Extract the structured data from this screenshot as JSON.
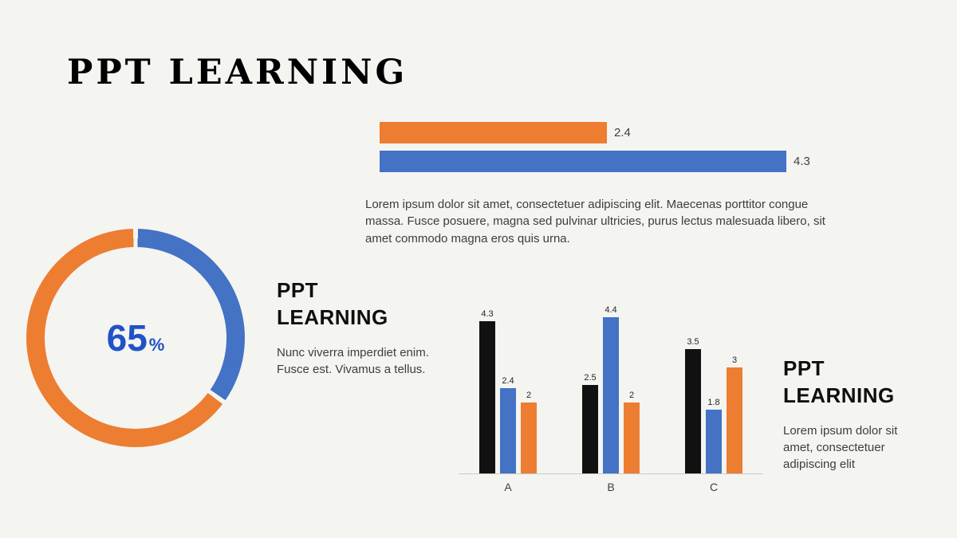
{
  "slide": {
    "title": "PPT LEARNING",
    "background": "#f4f4f1"
  },
  "colors": {
    "orange": "#ED7D31",
    "blue": "#4472C4",
    "black": "#111111",
    "center_text_blue": "#2052c8"
  },
  "paragraphs": {
    "top": "Lorem ipsum dolor sit amet, consectetuer adipiscing elit. Maecenas porttitor congue massa. Fusce posuere, magna sed pulvinar ultricies, purus lectus malesuada libero, sit amet commodo magna eros quis urna."
  },
  "mid_block": {
    "heading": "PPT LEARNING",
    "body": "Nunc viverra imperdiet enim. Fusce est. Vivamus a tellus."
  },
  "right_block": {
    "heading": "PPT LEARNING",
    "body": "Lorem ipsum dolor sit amet, consectetuer adipiscing elit"
  },
  "chart_data": [
    {
      "type": "bar",
      "orientation": "horizontal",
      "series": [
        {
          "name": "orange",
          "value": 2.4,
          "color": "#ED7D31"
        },
        {
          "name": "blue",
          "value": 4.3,
          "color": "#4472C4"
        }
      ],
      "xlim": [
        0,
        4.3
      ],
      "data_labels": true,
      "grid": false
    },
    {
      "type": "pie",
      "subtype": "donut",
      "center_value": "65",
      "center_suffix": "%",
      "start_angle_deg": 0,
      "slices": [
        {
          "name": "blue",
          "value": 35,
          "color": "#4472C4"
        },
        {
          "name": "orange",
          "value": 65,
          "color": "#ED7D31"
        }
      ]
    },
    {
      "type": "bar",
      "orientation": "vertical",
      "categories": [
        "A",
        "B",
        "C"
      ],
      "series": [
        {
          "name": "black",
          "color": "#111111",
          "values": [
            4.3,
            2.5,
            3.5
          ]
        },
        {
          "name": "blue",
          "color": "#4472C4",
          "values": [
            2.4,
            4.4,
            1.8
          ]
        },
        {
          "name": "orange",
          "color": "#ED7D31",
          "values": [
            2,
            2,
            3
          ]
        }
      ],
      "ylim": [
        0,
        4.5
      ],
      "data_labels": true,
      "grid": false,
      "legend": false
    }
  ]
}
